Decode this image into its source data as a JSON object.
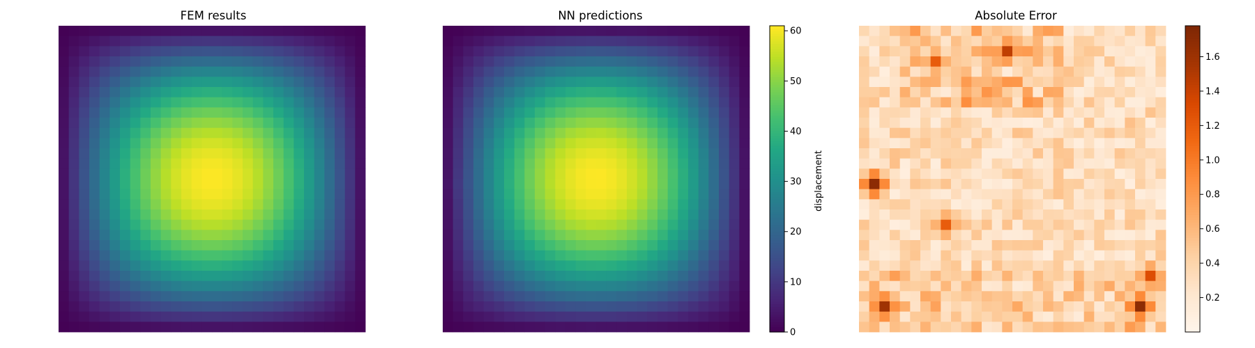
{
  "chart_data": [
    {
      "type": "heatmap",
      "title": "FEM results",
      "grid_size": [
        30,
        30
      ],
      "colormap": "viridis",
      "value_range": [
        0,
        61
      ],
      "field_description": "smooth radial bump, maximum near row 15 col 15, near zero at the corners",
      "axes_visible": false
    },
    {
      "type": "heatmap",
      "title": "NN predictions",
      "grid_size": [
        30,
        30
      ],
      "colormap": "viridis",
      "value_range": [
        0,
        61
      ],
      "axes_visible": false,
      "colorbar": {
        "label": "displacement",
        "ticks": [
          "0",
          "10",
          "20",
          "30",
          "40",
          "50",
          "60"
        ],
        "tick_values": [
          0,
          10,
          20,
          30,
          40,
          50,
          60
        ],
        "range": [
          0,
          61
        ]
      }
    },
    {
      "type": "heatmap",
      "title": "Absolute Error",
      "grid_size": [
        30,
        30
      ],
      "colormap": "Oranges",
      "value_range": [
        0,
        1.78
      ],
      "axes_visible": false,
      "hotspots": [
        {
          "row": 2,
          "col": 14,
          "value": 1.45
        },
        {
          "row": 3,
          "col": 7,
          "value": 1.2
        },
        {
          "row": 15,
          "col": 1,
          "value": 1.7
        },
        {
          "row": 27,
          "col": 2,
          "value": 1.6
        },
        {
          "row": 27,
          "col": 27,
          "value": 1.7
        },
        {
          "row": 24,
          "col": 28,
          "value": 1.3
        },
        {
          "row": 19,
          "col": 8,
          "value": 1.2
        }
      ],
      "colorbar": {
        "ticks": [
          "0.2",
          "0.4",
          "0.6",
          "0.8",
          "1.0",
          "1.2",
          "1.4",
          "1.6"
        ],
        "tick_values": [
          0.2,
          0.4,
          0.6,
          0.8,
          1.0,
          1.2,
          1.4,
          1.6
        ],
        "range": [
          0,
          1.78
        ]
      }
    }
  ]
}
